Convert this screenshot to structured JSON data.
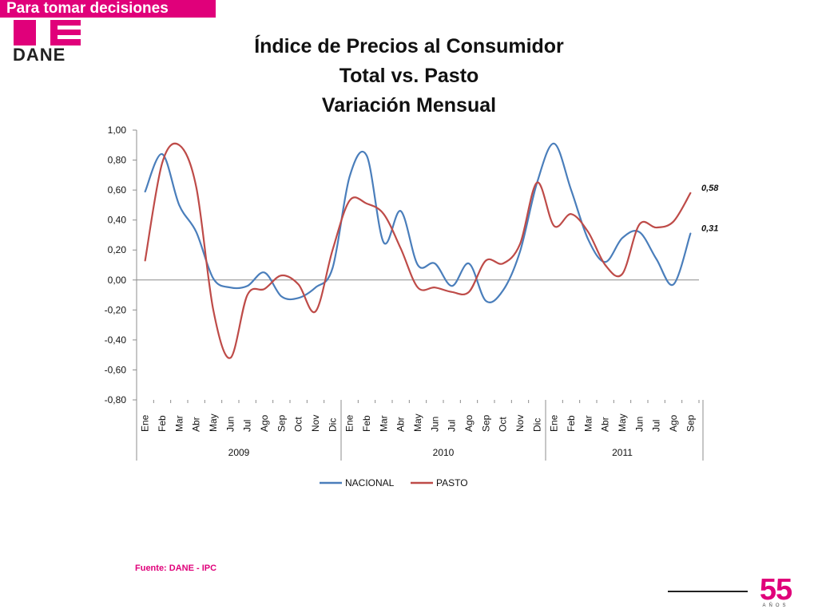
{
  "header": {
    "banner_text": "Para tomar decisiones",
    "logo_text": "DANE",
    "brand_color": "#e0007a"
  },
  "title": {
    "line1": "Índice de Precios al Consumidor",
    "line2": "Total vs. Pasto",
    "line3": "Variación Mensual"
  },
  "chart_data": {
    "type": "line",
    "title": "Índice de Precios al Consumidor Total vs. Pasto Variación Mensual",
    "ylim": [
      -0.8,
      1.0
    ],
    "y_ticks": [
      "1,00",
      "0,80",
      "0,60",
      "0,40",
      "0,20",
      "0,00",
      "-0,20",
      "-0,40",
      "-0,60",
      "-0,80"
    ],
    "y_tick_values": [
      1.0,
      0.8,
      0.6,
      0.4,
      0.2,
      0.0,
      -0.2,
      -0.4,
      -0.6,
      -0.8
    ],
    "categories": [
      "Ene",
      "Feb",
      "Mar",
      "Abr",
      "May",
      "Jun",
      "Jul",
      "Ago",
      "Sep",
      "Oct",
      "Nov",
      "Dic",
      "Ene",
      "Feb",
      "Mar",
      "Abr",
      "May",
      "Jun",
      "Jul",
      "Ago",
      "Sep",
      "Oct",
      "Nov",
      "Dic",
      "Ene",
      "Feb",
      "Mar",
      "Abr",
      "May",
      "Jun",
      "Jul",
      "Ago",
      "Sep"
    ],
    "year_groups": [
      {
        "label": "2009",
        "count": 12
      },
      {
        "label": "2010",
        "count": 12
      },
      {
        "label": "2011",
        "count": 9
      }
    ],
    "series": [
      {
        "name": "NACIONAL",
        "color": "#4a7ebb",
        "values": [
          0.59,
          0.84,
          0.5,
          0.32,
          0.01,
          -0.05,
          -0.04,
          0.05,
          -0.11,
          -0.12,
          -0.05,
          0.08,
          0.69,
          0.83,
          0.25,
          0.46,
          0.1,
          0.11,
          -0.04,
          0.11,
          -0.14,
          -0.07,
          0.19,
          0.65,
          0.91,
          0.6,
          0.27,
          0.12,
          0.28,
          0.32,
          0.14,
          -0.03,
          0.31
        ],
        "end_label": "0,31"
      },
      {
        "name": "PASTO",
        "color": "#be4b48",
        "values": [
          0.13,
          0.78,
          0.9,
          0.62,
          -0.2,
          -0.52,
          -0.1,
          -0.06,
          0.03,
          -0.03,
          -0.21,
          0.2,
          0.53,
          0.51,
          0.44,
          0.21,
          -0.05,
          -0.05,
          -0.08,
          -0.08,
          0.13,
          0.11,
          0.24,
          0.65,
          0.36,
          0.44,
          0.32,
          0.1,
          0.04,
          0.37,
          0.35,
          0.39,
          0.58
        ],
        "end_label": "0,58"
      }
    ],
    "legend_position": "bottom",
    "grid": false
  },
  "footer": {
    "source": "Fuente: DANE - IPC",
    "badge_number": "55",
    "badge_subtext": "AÑOS"
  }
}
